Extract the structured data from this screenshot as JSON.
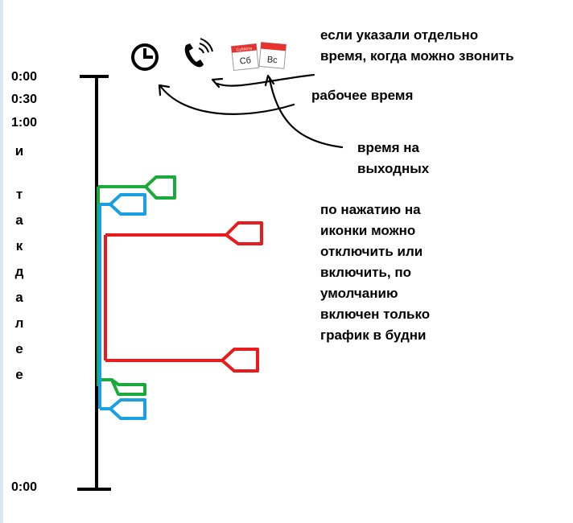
{
  "timeline": {
    "start_times": [
      "0:00",
      "0:30",
      "1:00"
    ],
    "continuation": [
      "и",
      "т",
      "а",
      "к",
      "д",
      "а",
      "л",
      "е",
      "е"
    ],
    "end_time": "0:00"
  },
  "icons": {
    "work_time": "clock-icon",
    "call_time": "phone-ringing-icon",
    "weekends": "calendar-weekend-icon",
    "saturday": "Сб",
    "sunday": "Вс",
    "calendar_header": "Суббота"
  },
  "notes": {
    "call_time": [
      "если указали отдельно",
      "время, когда можно звонить"
    ],
    "work_time": "рабочее время",
    "weekends": [
      "время на",
      "выходных"
    ],
    "toggle_info": [
      "по нажатию на",
      "иконки можно",
      "отключить или",
      "включить, по",
      "умолчанию",
      "включен только",
      "график в будни"
    ]
  },
  "colors": {
    "axis": "#000000",
    "work_schedule": "#e81c1c",
    "call_schedule": "#1aaa3c",
    "weekend_schedule": "#1a9fe0",
    "calendar_red": "#e8322e"
  }
}
